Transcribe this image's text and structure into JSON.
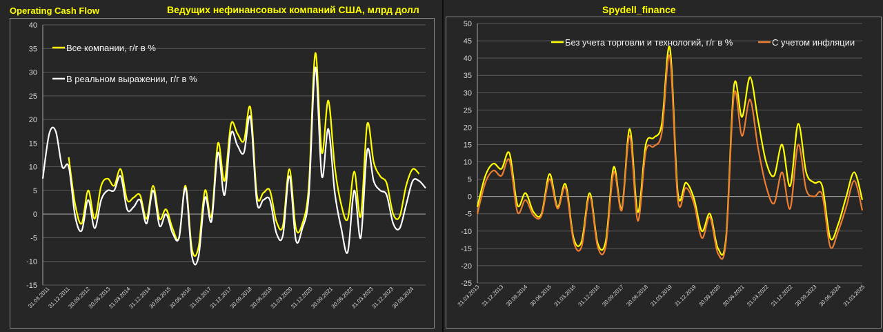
{
  "left": {
    "header_left": "Operating Cash Flow",
    "header_title": "Ведущих нефинансовых компаний США, млрд долл"
  },
  "right": {
    "header_title": "Spydell_finance"
  },
  "chart_data": [
    {
      "type": "line",
      "title": "Ведущих нефинансовых компаний США, млрд долл",
      "xlabel": "",
      "ylabel": "",
      "ylim": [
        -15,
        40
      ],
      "yticks": [
        -15,
        -10,
        -5,
        0,
        5,
        10,
        15,
        20,
        25,
        30,
        35,
        40
      ],
      "grid": true,
      "legend": "top-left",
      "x_tick_labels": [
        "31.03.2011",
        "31.12.2011",
        "30.09.2012",
        "30.06.2013",
        "31.03.2014",
        "31.12.2014",
        "30.09.2015",
        "30.06.2016",
        "31.03.2017",
        "31.12.2017",
        "30.09.2018",
        "30.06.2019",
        "31.03.2020",
        "31.12.2020",
        "30.09.2021",
        "30.06.2022",
        "31.03.2023",
        "31.12.2023",
        "30.09.2024"
      ],
      "series": [
        {
          "name": "Все компании, г/г в %",
          "color": "#ffff00",
          "start_index": 4,
          "values": [
            12,
            2,
            -2,
            5,
            -1,
            6,
            7.5,
            6,
            9.5,
            3,
            3.5,
            4,
            -1,
            6,
            -1,
            1,
            -3,
            -5,
            6,
            -7.5,
            -7,
            5,
            -0.5,
            15,
            7,
            19,
            17,
            15.5,
            22.5,
            4,
            4.5,
            5,
            -1.5,
            -2.5,
            9.5,
            -3,
            -2,
            6,
            34,
            13,
            24,
            10,
            2,
            -1,
            9,
            -0.5,
            19,
            11,
            8,
            6.5,
            0,
            -0.5,
            6,
            9.5,
            8.5
          ]
        },
        {
          "name": "В реальном выражении, г/г в %",
          "color": "#ffffff",
          "start_index": 0,
          "values": [
            7.5,
            17,
            17.5,
            10,
            10,
            -0.5,
            -3.5,
            3,
            -3,
            3,
            5,
            5,
            8,
            1,
            1.5,
            3,
            -2,
            5,
            -2.5,
            0,
            -4,
            -5,
            5.5,
            -9,
            -9,
            3.5,
            -1.5,
            13,
            4,
            17,
            14.5,
            13,
            20.5,
            2.5,
            3,
            3,
            -4,
            -4.5,
            8,
            -5.5,
            -3,
            4,
            31,
            8,
            18,
            4.5,
            -3,
            -8,
            5,
            -5,
            13.5,
            7,
            5,
            4,
            -2,
            -3,
            2,
            7,
            7,
            5.5
          ]
        }
      ]
    },
    {
      "type": "line",
      "title": "Spydell_finance",
      "xlabel": "",
      "ylabel": "",
      "ylim": [
        -25,
        50
      ],
      "yticks": [
        -25,
        -20,
        -15,
        -10,
        -5,
        0,
        5,
        10,
        15,
        20,
        25,
        30,
        35,
        40,
        45,
        50
      ],
      "grid": true,
      "legend": "top-right",
      "x_tick_labels": [
        "31.03.2013",
        "31.12.2013",
        "30.09.2014",
        "30.06.2015",
        "31.03.2016",
        "31.12.2016",
        "30.09.2017",
        "30.06.2018",
        "31.03.2019",
        "31.12.2019",
        "30.09.2020",
        "30.06.2021",
        "31.03.2022",
        "31.12.2022",
        "30.09.2023",
        "30.06.2024",
        "31.03.2025"
      ],
      "series": [
        {
          "name": "Без учета торговли и технологий, г/г в %",
          "color": "#ffff00",
          "start_index": 0,
          "values": [
            -3,
            6,
            9.5,
            8,
            12.5,
            -2.5,
            1,
            -4.5,
            -5,
            6.5,
            -3,
            3.5,
            -12,
            -13,
            1,
            -13.5,
            -13,
            8.5,
            -3.5,
            19.5,
            -4.5,
            15,
            17,
            21,
            43,
            1,
            4,
            -0.5,
            -10,
            -5,
            -15,
            -12,
            32,
            23,
            34.5,
            22,
            10,
            6,
            15,
            3,
            21,
            7,
            4,
            3,
            -12,
            -8,
            0,
            7,
            -1
          ]
        },
        {
          "name": "С учетом инфляции",
          "color": "#ed7d31",
          "start_index": 0,
          "values": [
            -5,
            4,
            7.5,
            6,
            10.5,
            -4.5,
            -1,
            -5.5,
            -5.5,
            5,
            -3.5,
            2.5,
            -13,
            -14.5,
            0,
            -14.5,
            -14.5,
            7,
            -4,
            17.5,
            -7,
            13,
            14.5,
            18.5,
            40.5,
            -1,
            2.5,
            -2,
            -12,
            -6,
            -16.5,
            -13,
            29.5,
            17.5,
            28,
            14,
            3,
            -2,
            7,
            -3.5,
            15,
            2,
            0,
            0.5,
            -14.5,
            -10,
            -3,
            4.5,
            -4
          ]
        }
      ]
    }
  ]
}
